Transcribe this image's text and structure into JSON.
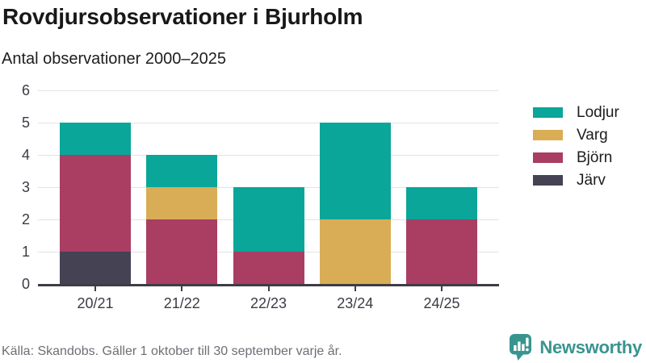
{
  "header": {
    "title": "Rovdjursobservationer i Bjurholm",
    "subtitle": "Antal observationer 2000–2025"
  },
  "chart_data": {
    "type": "bar",
    "stacked": true,
    "title": "Rovdjursobservationer i Bjurholm",
    "subtitle": "Antal observationer 2000–2025",
    "categories": [
      "20/21",
      "21/22",
      "22/23",
      "23/24",
      "24/25"
    ],
    "series": [
      {
        "name": "Lodjur",
        "color": "#0aa69a",
        "values": [
          1,
          1,
          2,
          3,
          1
        ]
      },
      {
        "name": "Varg",
        "color": "#d9ad56",
        "values": [
          0,
          1,
          0,
          2,
          0
        ]
      },
      {
        "name": "Björn",
        "color": "#a93e62",
        "values": [
          3,
          2,
          1,
          0,
          2
        ]
      },
      {
        "name": "Järv",
        "color": "#454253",
        "values": [
          1,
          0,
          0,
          0,
          0
        ]
      }
    ],
    "stack_order_bottom_to_top": [
      "Järv",
      "Björn",
      "Varg",
      "Lodjur"
    ],
    "totals": [
      5,
      4,
      3,
      5,
      3
    ],
    "xlabel": "",
    "ylabel": "",
    "ylim": [
      0,
      6
    ],
    "yticks": [
      0,
      1,
      2,
      3,
      4,
      5,
      6
    ],
    "grid": true,
    "legend_position": "right"
  },
  "footer": {
    "source": "Källa: Skandobs. Gäller 1 oktober till 30 september varje år.",
    "brand": "Newsworthy",
    "brand_color": "#399490"
  }
}
